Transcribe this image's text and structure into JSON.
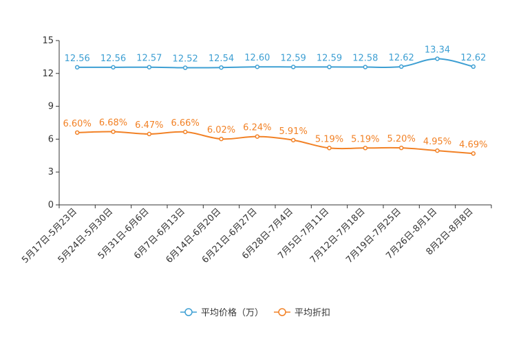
{
  "chart_data": {
    "type": "line",
    "title": "",
    "xlabel": "",
    "ylabel": "",
    "ylim": [
      0,
      15
    ],
    "yticks": [
      0,
      3,
      6,
      9,
      12,
      15
    ],
    "grid": false,
    "legend_position": "bottom-center",
    "categories": [
      "5月17日-5月23日",
      "5月24日-5月30日",
      "5月31日-6月6日",
      "6月7日-6月13日",
      "6月14日-6月20日",
      "6月21日-6月27日",
      "6月28日-7月4日",
      "7月5日-7月11日",
      "7月12日-7月18日",
      "7月19日-7月25日",
      "7月26日-8月1日",
      "8月2日-8月8日"
    ],
    "series": [
      {
        "name": "平均价格（万）",
        "color": "#3d9fd3",
        "values": [
          12.56,
          12.56,
          12.57,
          12.52,
          12.54,
          12.6,
          12.59,
          12.59,
          12.58,
          12.62,
          13.34,
          12.62
        ],
        "labels": [
          "12.56",
          "12.56",
          "12.57",
          "12.52",
          "12.54",
          "12.60",
          "12.59",
          "12.59",
          "12.58",
          "12.62",
          "13.34",
          "12.62"
        ]
      },
      {
        "name": "平均折扣",
        "color": "#f28125",
        "values": [
          6.6,
          6.68,
          6.47,
          6.66,
          6.02,
          6.24,
          5.91,
          5.19,
          5.19,
          5.2,
          4.95,
          4.69
        ],
        "labels": [
          "6.60%",
          "6.68%",
          "6.47%",
          "6.66%",
          "6.02%",
          "6.24%",
          "5.91%",
          "5.19%",
          "5.19%",
          "5.20%",
          "4.95%",
          "4.69%"
        ]
      }
    ]
  }
}
